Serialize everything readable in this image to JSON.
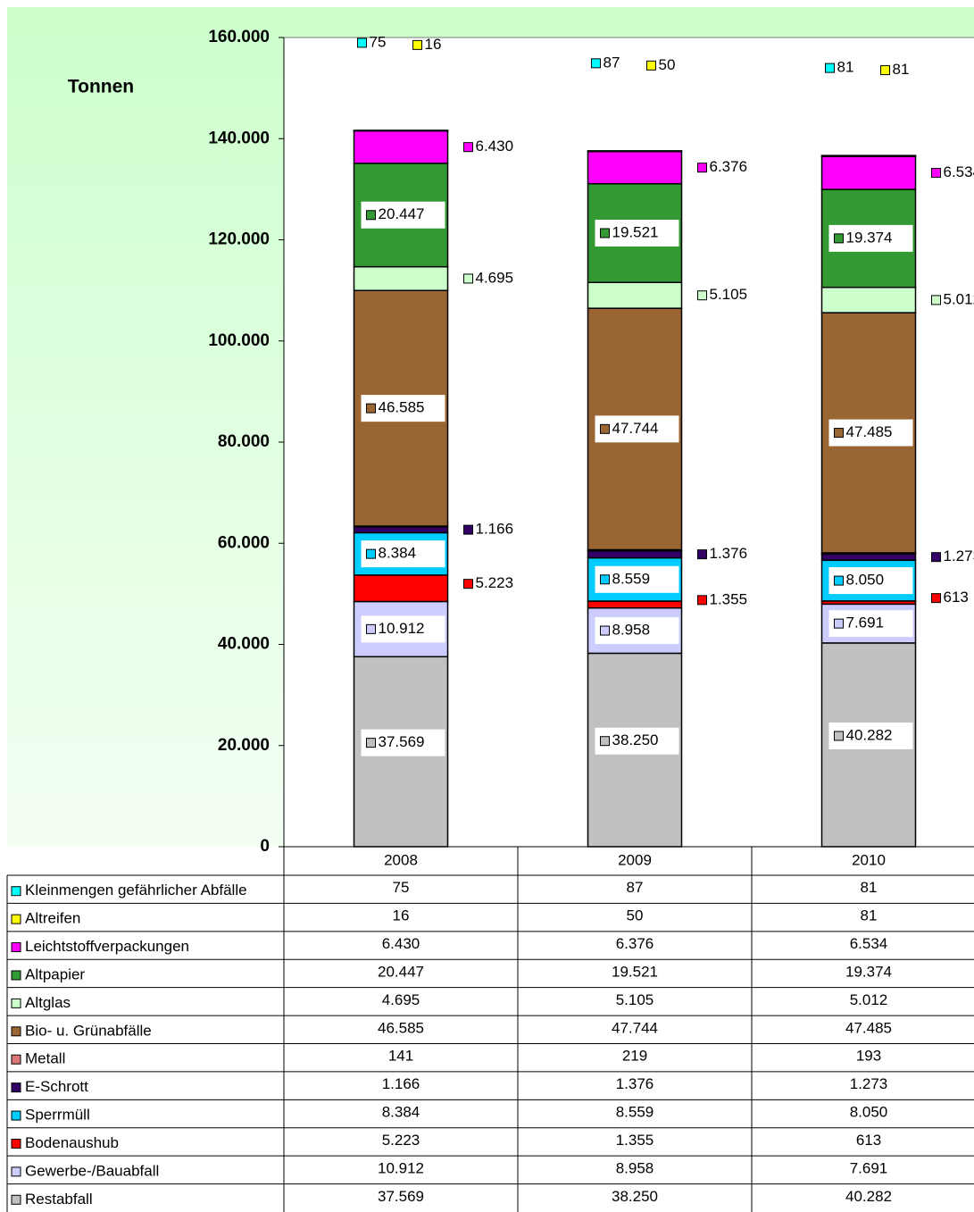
{
  "chart_data": {
    "type": "stacked_bar",
    "y_label": "Tonnen",
    "categories": [
      "2008",
      "2009",
      "2010"
    ],
    "ylim": [
      0,
      160000
    ],
    "yticks": [
      0,
      {
        "value": 20000,
        "label": "20.000"
      },
      {
        "value": 40000,
        "label": "40.000"
      },
      {
        "value": 60000,
        "label": "60.000"
      },
      {
        "value": 80000,
        "label": "80.000"
      },
      {
        "value": 100000,
        "label": "100.000"
      },
      {
        "value": 120000,
        "label": "120.000"
      },
      {
        "value": 140000,
        "label": "140.000"
      },
      {
        "value": 160000,
        "label": "160.000"
      }
    ],
    "series": [
      {
        "name": "Restabfall",
        "color": "#c0c0c0",
        "values": [
          37569,
          38250,
          40282
        ],
        "value_labels": [
          "37.569",
          "38.250",
          "40.282"
        ]
      },
      {
        "name": "Gewerbe-/Bauabfall",
        "color": "#ccccff",
        "values": [
          10912,
          8958,
          7691
        ],
        "value_labels": [
          "10.912",
          "8.958",
          "7.691"
        ]
      },
      {
        "name": "Bodenaushub",
        "color": "#ff0000",
        "values": [
          5223,
          1355,
          613
        ],
        "value_labels": [
          "5.223",
          "1.355",
          "613"
        ]
      },
      {
        "name": "Sperrmüll",
        "color": "#00ccff",
        "values": [
          8384,
          8559,
          8050
        ],
        "value_labels": [
          "8.384",
          "8.559",
          "8.050"
        ]
      },
      {
        "name": "E-Schrott",
        "color": "#330066",
        "values": [
          1166,
          1376,
          1273
        ],
        "value_labels": [
          "1.166",
          "1.376",
          "1.273"
        ]
      },
      {
        "name": "Metall",
        "color": "#dd7777",
        "values": [
          141,
          219,
          193
        ]
      },
      {
        "name": "Bio- u. Grünabfälle",
        "color": "#996633",
        "values": [
          46585,
          47744,
          47485
        ],
        "value_labels": [
          "46.585",
          "47.744",
          "47.485"
        ]
      },
      {
        "name": "Altglas",
        "color": "#ccffcc",
        "values": [
          4695,
          5105,
          5012
        ],
        "value_labels": [
          "4.695",
          "5.105",
          "5.012"
        ]
      },
      {
        "name": "Altpapier",
        "color": "#339933",
        "values": [
          20447,
          19521,
          19374
        ],
        "value_labels": [
          "20.447",
          "19.521",
          "19.374"
        ]
      },
      {
        "name": "Leichtstoffverpackungen",
        "color": "#ff00ff",
        "values": [
          6430,
          6376,
          6534
        ],
        "value_labels": [
          "6.430",
          "6.376",
          "6.534"
        ]
      },
      {
        "name": "Altreifen",
        "color": "#ffff00",
        "values": [
          16,
          50,
          81
        ]
      },
      {
        "name": "Kleinmengen gefährlicher Abfälle",
        "color": "#00ffff",
        "values": [
          75,
          87,
          81
        ]
      }
    ]
  }
}
